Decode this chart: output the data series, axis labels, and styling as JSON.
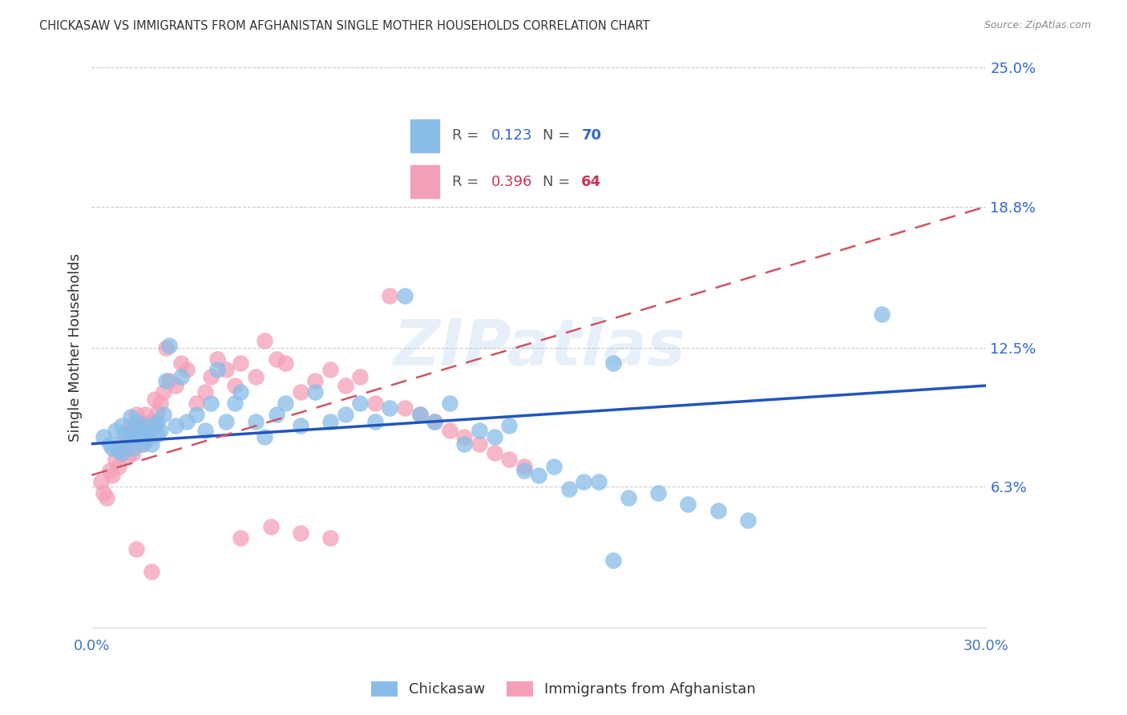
{
  "title": "CHICKASAW VS IMMIGRANTS FROM AFGHANISTAN SINGLE MOTHER HOUSEHOLDS CORRELATION CHART",
  "source": "Source: ZipAtlas.com",
  "ylabel": "Single Mother Households",
  "xlim": [
    0.0,
    0.3
  ],
  "ylim": [
    0.0,
    0.25
  ],
  "xticks": [
    0.0,
    0.05,
    0.1,
    0.15,
    0.2,
    0.25,
    0.3
  ],
  "yticks_right": [
    0.063,
    0.125,
    0.188,
    0.25
  ],
  "yticklabels_right": [
    "6.3%",
    "12.5%",
    "18.8%",
    "25.0%"
  ],
  "chickasaw_color": "#89bde8",
  "afghanistan_color": "#f4a0b8",
  "chickasaw_R": 0.123,
  "chickasaw_N": 70,
  "afghanistan_R": 0.396,
  "afghanistan_N": 64,
  "trend_blue_color": "#2255bb",
  "trend_pink_color": "#cc5566",
  "watermark": "ZIPatlas",
  "legend_label1": "Chickasaw",
  "legend_label2": "Immigrants from Afghanistan",
  "text_color_blue": "#3366cc",
  "text_color_pink": "#cc3355",
  "chickasaw_x": [
    0.004,
    0.006,
    0.007,
    0.008,
    0.009,
    0.01,
    0.01,
    0.011,
    0.012,
    0.013,
    0.013,
    0.014,
    0.015,
    0.015,
    0.016,
    0.017,
    0.018,
    0.018,
    0.019,
    0.02,
    0.021,
    0.022,
    0.022,
    0.023,
    0.024,
    0.025,
    0.026,
    0.028,
    0.03,
    0.032,
    0.035,
    0.038,
    0.04,
    0.042,
    0.045,
    0.048,
    0.05,
    0.055,
    0.058,
    0.062,
    0.065,
    0.07,
    0.075,
    0.08,
    0.085,
    0.09,
    0.095,
    0.1,
    0.105,
    0.11,
    0.115,
    0.12,
    0.125,
    0.13,
    0.135,
    0.14,
    0.145,
    0.15,
    0.16,
    0.17,
    0.18,
    0.19,
    0.2,
    0.21,
    0.22,
    0.155,
    0.165,
    0.175,
    0.265,
    0.175
  ],
  "chickasaw_y": [
    0.085,
    0.082,
    0.08,
    0.088,
    0.079,
    0.078,
    0.09,
    0.086,
    0.083,
    0.087,
    0.094,
    0.08,
    0.092,
    0.085,
    0.088,
    0.082,
    0.09,
    0.086,
    0.084,
    0.082,
    0.09,
    0.086,
    0.092,
    0.088,
    0.095,
    0.11,
    0.126,
    0.09,
    0.112,
    0.092,
    0.095,
    0.088,
    0.1,
    0.115,
    0.092,
    0.1,
    0.105,
    0.092,
    0.085,
    0.095,
    0.1,
    0.09,
    0.105,
    0.092,
    0.095,
    0.1,
    0.092,
    0.098,
    0.148,
    0.095,
    0.092,
    0.1,
    0.082,
    0.088,
    0.085,
    0.09,
    0.07,
    0.068,
    0.062,
    0.065,
    0.058,
    0.06,
    0.055,
    0.052,
    0.048,
    0.072,
    0.065,
    0.118,
    0.14,
    0.03
  ],
  "afghanistan_x": [
    0.003,
    0.004,
    0.005,
    0.006,
    0.007,
    0.008,
    0.009,
    0.01,
    0.01,
    0.011,
    0.012,
    0.013,
    0.013,
    0.014,
    0.015,
    0.015,
    0.016,
    0.017,
    0.018,
    0.018,
    0.019,
    0.02,
    0.021,
    0.022,
    0.023,
    0.024,
    0.025,
    0.026,
    0.028,
    0.03,
    0.032,
    0.035,
    0.038,
    0.04,
    0.042,
    0.045,
    0.048,
    0.05,
    0.055,
    0.058,
    0.062,
    0.065,
    0.07,
    0.075,
    0.08,
    0.085,
    0.09,
    0.095,
    0.1,
    0.105,
    0.11,
    0.115,
    0.12,
    0.125,
    0.13,
    0.135,
    0.14,
    0.145,
    0.05,
    0.06,
    0.07,
    0.08,
    0.02,
    0.015
  ],
  "afghanistan_y": [
    0.065,
    0.06,
    0.058,
    0.07,
    0.068,
    0.075,
    0.072,
    0.078,
    0.082,
    0.08,
    0.076,
    0.085,
    0.09,
    0.078,
    0.095,
    0.088,
    0.092,
    0.082,
    0.086,
    0.095,
    0.09,
    0.092,
    0.102,
    0.096,
    0.1,
    0.105,
    0.125,
    0.11,
    0.108,
    0.118,
    0.115,
    0.1,
    0.105,
    0.112,
    0.12,
    0.115,
    0.108,
    0.118,
    0.112,
    0.128,
    0.12,
    0.118,
    0.105,
    0.11,
    0.115,
    0.108,
    0.112,
    0.1,
    0.148,
    0.098,
    0.095,
    0.092,
    0.088,
    0.085,
    0.082,
    0.078,
    0.075,
    0.072,
    0.04,
    0.045,
    0.042,
    0.04,
    0.025,
    0.035
  ]
}
